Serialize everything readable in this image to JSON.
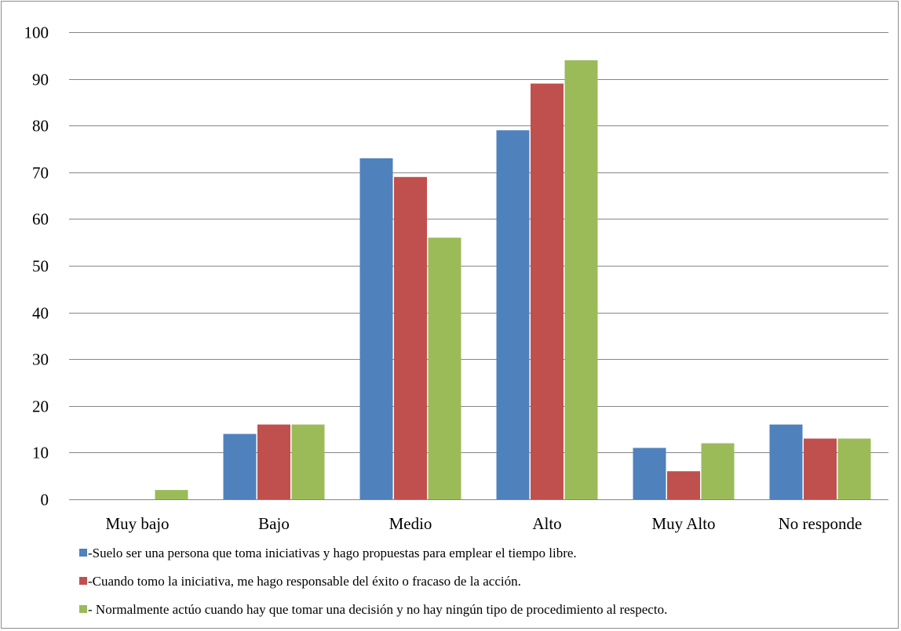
{
  "chart_data": {
    "type": "bar",
    "title": "",
    "xlabel": "",
    "ylabel": "",
    "categories": [
      "Muy bajo",
      "Bajo",
      "Medio",
      "Alto",
      "Muy Alto",
      "No responde"
    ],
    "ylim": [
      0,
      100
    ],
    "yticks": [
      0,
      10,
      20,
      30,
      40,
      50,
      60,
      70,
      80,
      90,
      100
    ],
    "grid": true,
    "legend_position": "bottom",
    "series": [
      {
        "name": "-Suelo ser una persona que toma iniciativas y hago propuestas para emplear el tiempo libre.",
        "color": "#4f81bd",
        "values": [
          0,
          14,
          73,
          79,
          11,
          16
        ]
      },
      {
        "name": "-Cuando tomo la iniciativa, me hago responsable del éxito o fracaso de la acción.",
        "color": "#c0504d",
        "values": [
          0,
          16,
          69,
          89,
          6,
          13
        ]
      },
      {
        "name": "- Normalmente actúo cuando hay que tomar una decisión y no hay ningún tipo de procedimiento al respecto.",
        "color": "#9bbb59",
        "values": [
          2,
          16,
          56,
          94,
          12,
          13
        ]
      }
    ]
  }
}
